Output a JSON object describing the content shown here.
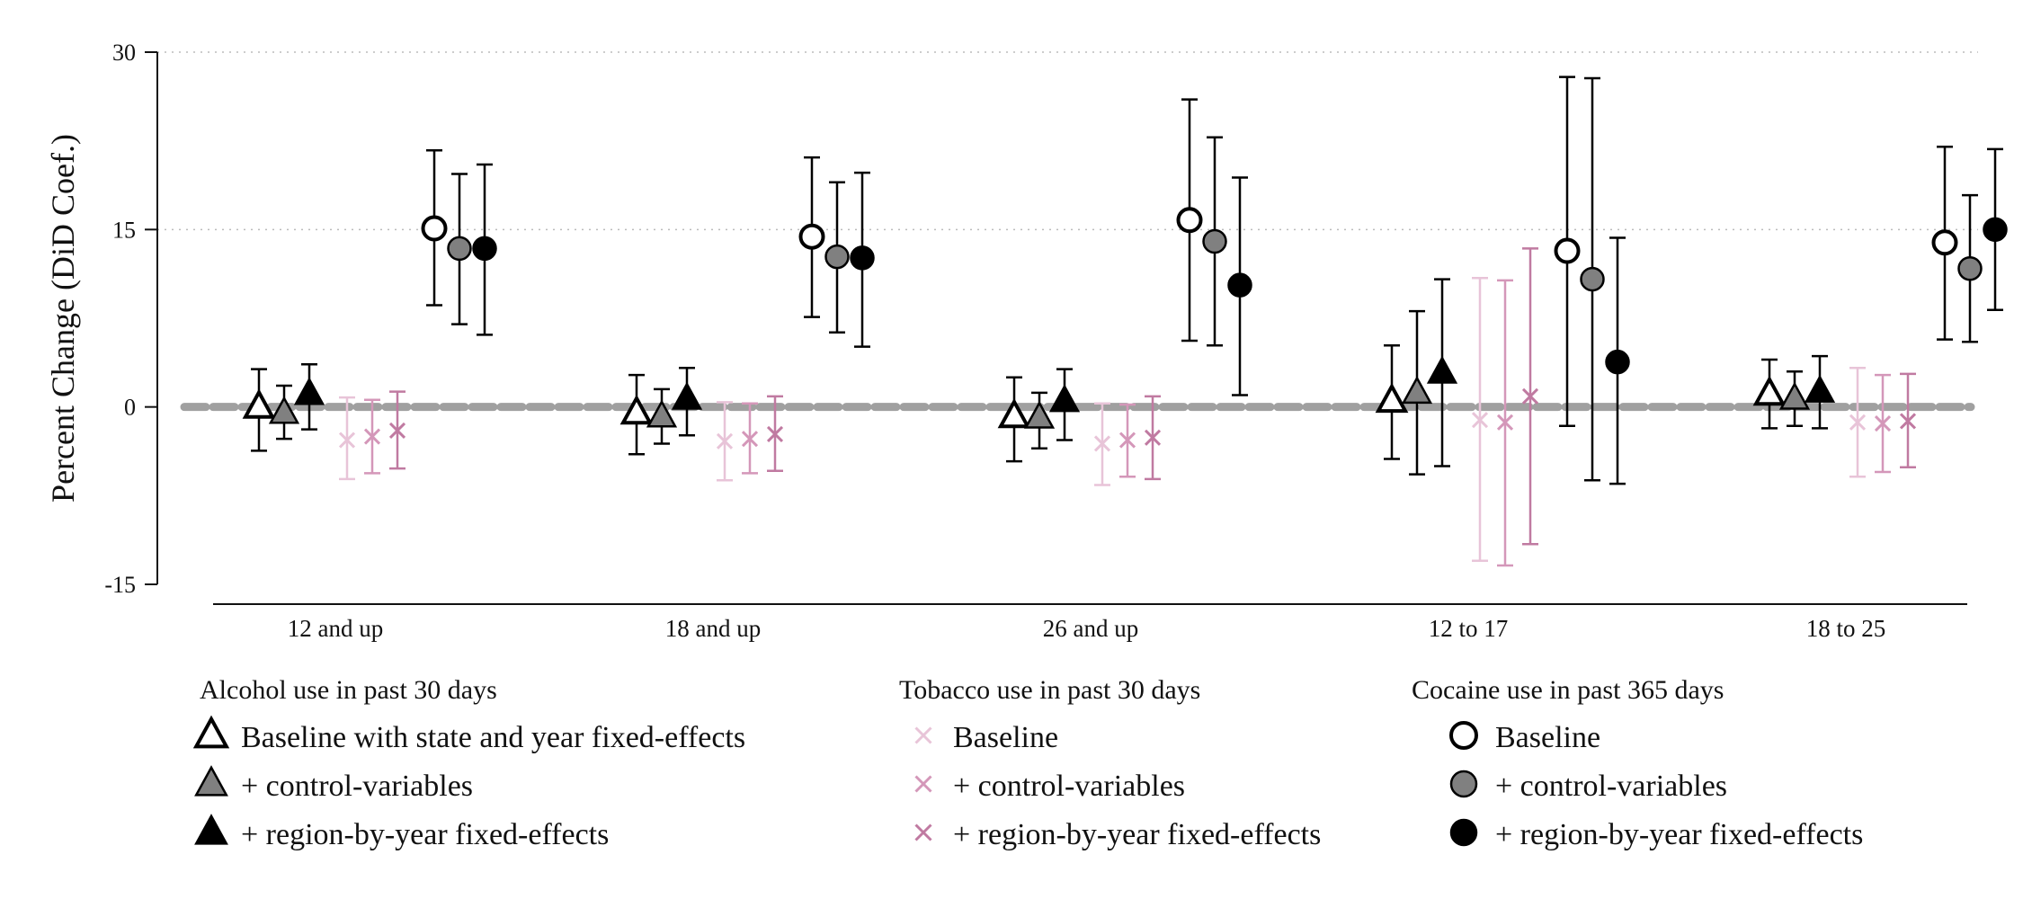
{
  "chart_data": {
    "type": "scatter",
    "ylabel": "Percent Change (DiD Coef.)",
    "xlabel": "",
    "ylim": [
      -15,
      30
    ],
    "yticks": [
      -15,
      0,
      15,
      30
    ],
    "grid": true,
    "reference_line": 0,
    "categories": [
      "12 and up",
      "18 and up",
      "26 and up",
      "12 to 17",
      "18 to 25"
    ],
    "groups": [
      {
        "name": "Alcohol use in past 30 days",
        "marker": "triangle",
        "series": [
          {
            "name": "Baseline with state and year fixed-effects",
            "style": "hollow",
            "values": [
              0.0,
              -0.5,
              -0.8,
              0.5,
              1.1
            ],
            "lower": [
              -3.7,
              -4.0,
              -4.6,
              -4.4,
              -1.8
            ],
            "upper": [
              3.2,
              2.7,
              2.5,
              5.2,
              4.0
            ]
          },
          {
            "name": "+ control-variables",
            "style": "gray",
            "values": [
              -0.5,
              -0.8,
              -0.9,
              1.2,
              0.7
            ],
            "lower": [
              -2.7,
              -3.1,
              -3.5,
              -5.7,
              -1.6
            ],
            "upper": [
              1.8,
              1.5,
              1.2,
              8.1,
              3.0
            ]
          },
          {
            "name": "+ region-by-year fixed-effects",
            "style": "black",
            "values": [
              1.1,
              0.7,
              0.5,
              2.9,
              1.3
            ],
            "lower": [
              -1.9,
              -2.4,
              -2.8,
              -5.0,
              -1.8
            ],
            "upper": [
              3.6,
              3.3,
              3.2,
              10.8,
              4.3
            ]
          }
        ]
      },
      {
        "name": "Tobacco use in past 30 days",
        "marker": "x",
        "series": [
          {
            "name": "Baseline",
            "style": "light",
            "values": [
              -2.8,
              -2.9,
              -3.1,
              -1.1,
              -1.3
            ],
            "lower": [
              -6.1,
              -6.2,
              -6.6,
              -13.0,
              -5.9
            ],
            "upper": [
              0.8,
              0.4,
              0.3,
              10.9,
              3.3
            ]
          },
          {
            "name": "+ control-variables",
            "style": "medium",
            "values": [
              -2.5,
              -2.7,
              -2.8,
              -1.3,
              -1.4
            ],
            "lower": [
              -5.6,
              -5.6,
              -5.9,
              -13.4,
              -5.5
            ],
            "upper": [
              0.6,
              0.3,
              0.2,
              10.7,
              2.7
            ]
          },
          {
            "name": "+ region-by-year fixed-effects",
            "style": "dark",
            "values": [
              -2.0,
              -2.3,
              -2.6,
              0.9,
              -1.2
            ],
            "lower": [
              -5.2,
              -5.4,
              -6.1,
              -11.6,
              -5.1
            ],
            "upper": [
              1.3,
              0.9,
              0.9,
              13.4,
              2.8
            ]
          }
        ]
      },
      {
        "name": "Cocaine use in past 365 days",
        "marker": "circle",
        "series": [
          {
            "name": "Baseline",
            "style": "hollow",
            "values": [
              15.1,
              14.4,
              15.8,
              13.2,
              13.9
            ],
            "lower": [
              8.6,
              7.6,
              5.6,
              -1.6,
              5.7
            ],
            "upper": [
              21.7,
              21.1,
              26.0,
              27.9,
              22.0
            ]
          },
          {
            "name": "+ control-variables",
            "style": "gray",
            "values": [
              13.4,
              12.7,
              14.0,
              10.8,
              11.7
            ],
            "lower": [
              7.0,
              6.3,
              5.2,
              -6.2,
              5.5
            ],
            "upper": [
              19.7,
              19.0,
              22.8,
              27.8,
              17.9
            ]
          },
          {
            "name": "+ region-by-year fixed-effects",
            "style": "black",
            "values": [
              13.4,
              12.6,
              10.3,
              3.8,
              15.0
            ],
            "lower": [
              6.1,
              5.1,
              1.0,
              -6.5,
              8.2
            ],
            "upper": [
              20.5,
              19.8,
              19.4,
              14.3,
              21.8
            ]
          }
        ]
      }
    ],
    "colors": {
      "axis": "#111111",
      "grid": "#bbbbbb",
      "reference_line": "#a0a0a0",
      "marker_gray": "#808080",
      "tobacco_light": "#e8c4d8",
      "tobacco_medium": "#d497b9",
      "tobacco_dark": "#c07aa1"
    }
  }
}
